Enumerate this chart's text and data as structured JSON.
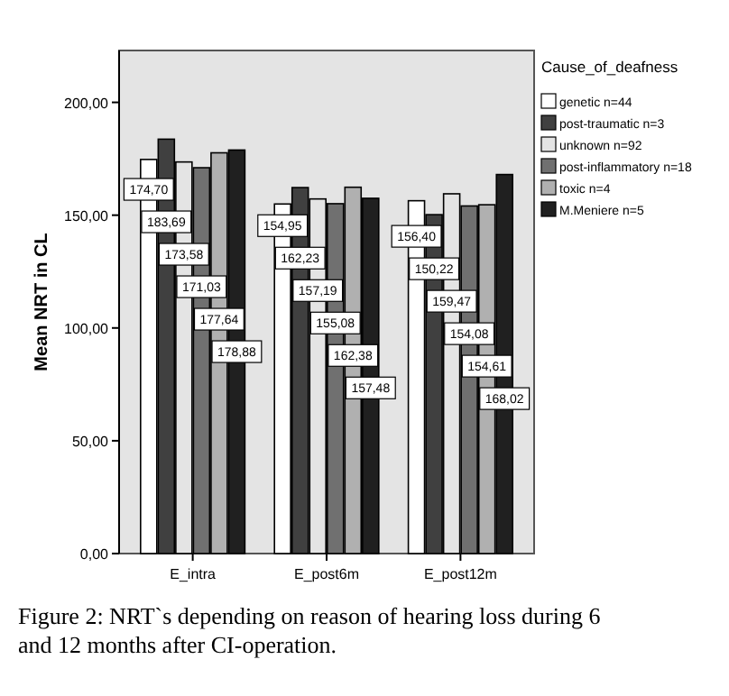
{
  "chart_data": {
    "type": "bar",
    "ylabel": "Mean NRT in CL",
    "legend_title": "Cause_of_deafness",
    "categories": [
      "E_intra",
      "E_post6m",
      "E_post12m"
    ],
    "ylim": [
      0,
      223
    ],
    "yticks": [
      {
        "value": 0,
        "label": "0,00"
      },
      {
        "value": 50,
        "label": "50,00"
      },
      {
        "value": 100,
        "label": "100,00"
      },
      {
        "value": 150,
        "label": "150,00"
      },
      {
        "value": 200,
        "label": "200,00"
      }
    ],
    "legend": "top right",
    "grid": false,
    "series": [
      {
        "name": "genetic n=44",
        "color": "#ffffff",
        "values": [
          174.7,
          154.95,
          156.4
        ],
        "value_labels": [
          "174,70",
          "154,95",
          "156,40"
        ]
      },
      {
        "name": "post-traumatic n=3",
        "color": "#404040",
        "values": [
          183.69,
          162.23,
          150.22
        ],
        "value_labels": [
          "183,69",
          "162,23",
          "150,22"
        ]
      },
      {
        "name": "unknown n=92",
        "color": "#e4e4e4",
        "values": [
          173.58,
          157.19,
          159.47
        ],
        "value_labels": [
          "173,58",
          "157,19",
          "159,47"
        ]
      },
      {
        "name": "post-inflammatory n=18",
        "color": "#707070",
        "values": [
          171.03,
          155.08,
          154.08
        ],
        "value_labels": [
          "171,03",
          "155,08",
          "154,08"
        ]
      },
      {
        "name": "toxic n=4",
        "color": "#b0b0b0",
        "values": [
          177.64,
          162.38,
          154.61
        ],
        "value_labels": [
          "177,64",
          "162,38",
          "154,61"
        ]
      },
      {
        "name": "M.Meniere n=5",
        "color": "#202020",
        "values": [
          178.88,
          157.48,
          168.02
        ],
        "value_labels": [
          "178,88",
          "157,48",
          "168,02"
        ]
      }
    ],
    "annotations": [
      "Figure 2: NRT`s depending on reason of hearing loss during 6 and 12 months after CI-operation."
    ]
  }
}
